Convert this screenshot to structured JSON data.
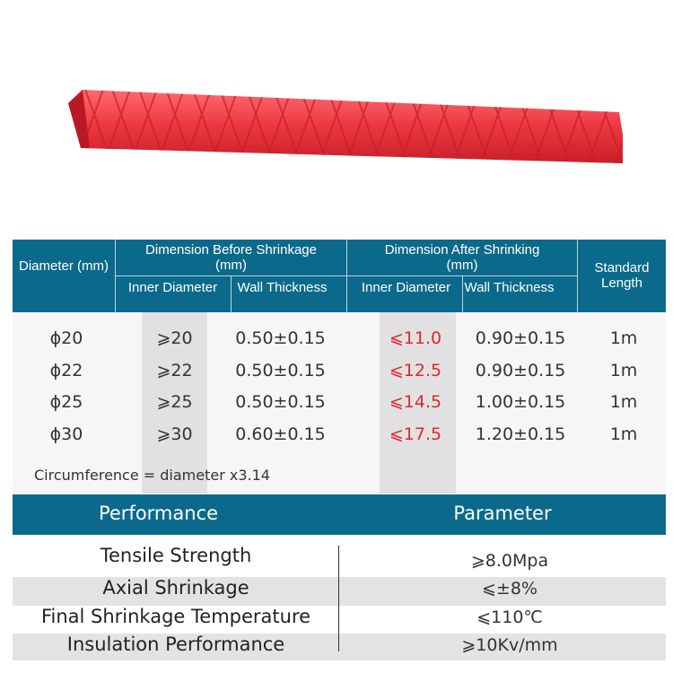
{
  "colors": {
    "header": "#0b6a8b",
    "highlight": "#e0262e",
    "product": "#e8303a"
  },
  "product_image": {
    "name": "red heat shrink tube with crosshatch pattern"
  },
  "spec_table": {
    "headers": {
      "diameter": "Diameter (mm)",
      "before": "Dimension Before Shrinkage (mm)",
      "after": "Dimension After Shrinking (mm)",
      "length": "Standard Length",
      "inner": "Inner Diameter",
      "wall": "Wall Thickness"
    },
    "rows": [
      {
        "diameter": "ϕ20",
        "inner_before": "⩾20",
        "wall_before": "0.50±0.15",
        "inner_after": "⩽11.0",
        "wall_after": "0.90±0.15",
        "length": "1m"
      },
      {
        "diameter": "ϕ22",
        "inner_before": "⩾22",
        "wall_before": "0.50±0.15",
        "inner_after": "⩽12.5",
        "wall_after": "0.90±0.15",
        "length": "1m"
      },
      {
        "diameter": "ϕ25",
        "inner_before": "⩾25",
        "wall_before": "0.50±0.15",
        "inner_after": "⩽14.5",
        "wall_after": "1.00±0.15",
        "length": "1m"
      },
      {
        "diameter": "ϕ30",
        "inner_before": "⩾30",
        "wall_before": "0.60±0.15",
        "inner_after": "⩽17.5",
        "wall_after": "1.20±0.15",
        "length": "1m"
      }
    ],
    "note": "Circumference = diameter x3.14"
  },
  "performance": {
    "headers": {
      "performance": "Performance",
      "parameter": "Parameter"
    },
    "rows": [
      {
        "name": "Tensile Strength",
        "value": "⩾8.0Mpa"
      },
      {
        "name": "Axial Shrinkage",
        "value": "⩽±8%"
      },
      {
        "name": "Final Shrinkage Temperature",
        "value": "⩽110℃"
      },
      {
        "name": "Insulation Performance",
        "value": "⩾10Kv/mm"
      }
    ]
  }
}
